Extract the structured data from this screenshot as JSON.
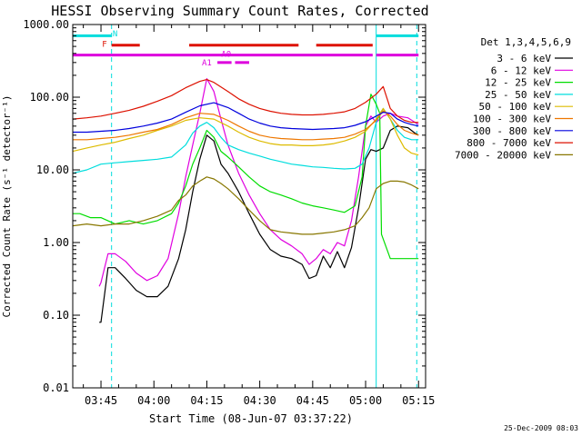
{
  "chart_data": {
    "type": "line",
    "title": "HESSI Observing Summary Count Rates, Corrected",
    "xlabel": "Start Time (08-Jun-07 03:37:22)",
    "ylabel": "Corrected Count Rate (s⁻¹ detector⁻¹)",
    "y_scale": "log",
    "xlim": [
      0,
      100
    ],
    "ylim": [
      0.01,
      1000
    ],
    "x_ticks": [
      {
        "x": 8,
        "label": "03:45"
      },
      {
        "x": 23,
        "label": "04:00"
      },
      {
        "x": 38,
        "label": "04:15"
      },
      {
        "x": 53,
        "label": "04:30"
      },
      {
        "x": 68,
        "label": "04:45"
      },
      {
        "x": 83,
        "label": "05:00"
      },
      {
        "x": 98,
        "label": "05:15"
      }
    ],
    "y_ticks": [
      {
        "y": 0.01,
        "label": "0.01"
      },
      {
        "y": 0.1,
        "label": "0.10"
      },
      {
        "y": 1,
        "label": "1.00"
      },
      {
        "y": 10,
        "label": "10.00"
      },
      {
        "y": 100,
        "label": "100.00"
      },
      {
        "y": 1000,
        "label": "1000.00"
      }
    ],
    "legend_title": "Det 1,3,4,5,6,9",
    "legend_position": "right",
    "series": [
      {
        "name": "3 - 6 keV",
        "color": "#000000",
        "x": [
          7.5,
          8,
          10,
          12,
          15,
          18,
          21,
          24,
          27,
          30,
          32,
          34,
          36,
          38,
          40,
          42,
          44,
          47,
          50,
          53,
          56,
          59,
          62,
          65,
          67,
          69,
          71,
          73,
          75,
          77,
          79,
          81,
          83,
          84.5,
          86,
          88,
          90,
          92,
          95,
          97,
          98
        ],
        "y": [
          0.08,
          0.08,
          0.45,
          0.45,
          0.32,
          0.22,
          0.18,
          0.18,
          0.25,
          0.6,
          1.5,
          5,
          14,
          30,
          25,
          12,
          9,
          5,
          2.5,
          1.3,
          0.8,
          0.65,
          0.6,
          0.5,
          0.32,
          0.35,
          0.65,
          0.45,
          0.75,
          0.45,
          0.85,
          3,
          14,
          19,
          18,
          20,
          35,
          40,
          38,
          32,
          30
        ]
      },
      {
        "name": "6 - 12 keV",
        "color": "#e000e0",
        "x": [
          7.5,
          8,
          10,
          12,
          15,
          18,
          21,
          24,
          27,
          30,
          32,
          34,
          36,
          38,
          40,
          42,
          44,
          47,
          50,
          53,
          56,
          59,
          62,
          65,
          67,
          69,
          71,
          73,
          75,
          77,
          79,
          81,
          83,
          84.5,
          86,
          88,
          90,
          92,
          95,
          97,
          98
        ],
        "y": [
          0.25,
          0.28,
          0.7,
          0.7,
          0.55,
          0.38,
          0.3,
          0.35,
          0.6,
          2.5,
          8,
          22,
          60,
          180,
          120,
          50,
          22,
          9,
          4.5,
          2.5,
          1.5,
          1.1,
          0.9,
          0.7,
          0.5,
          0.6,
          0.8,
          0.7,
          1,
          0.9,
          2,
          8,
          40,
          55,
          45,
          55,
          60,
          55,
          52,
          45,
          42
        ]
      },
      {
        "name": "12 - 25 keV",
        "color": "#00dd00",
        "x": [
          0,
          2,
          5,
          8,
          12,
          16,
          20,
          24,
          28,
          30,
          32,
          34,
          36,
          38,
          40,
          42,
          44,
          47,
          50,
          53,
          56,
          59,
          62,
          65,
          68,
          71,
          74,
          77,
          80,
          82,
          83,
          84.5,
          86,
          87,
          87.5,
          90,
          95,
          98
        ],
        "y": [
          2.5,
          2.5,
          2.2,
          2.2,
          1.8,
          2,
          1.8,
          2,
          2.5,
          3.5,
          6,
          12,
          20,
          35,
          28,
          18,
          15,
          11,
          8,
          6,
          5,
          4.5,
          4,
          3.5,
          3.2,
          3,
          2.8,
          2.6,
          3.2,
          8,
          40,
          110,
          80,
          60,
          1.3,
          0.6,
          0.6,
          0.6
        ]
      },
      {
        "name": "25 - 50 keV",
        "color": "#00dddd",
        "x": [
          0,
          4,
          8,
          12,
          16,
          20,
          24,
          28,
          32,
          34,
          36,
          38,
          40,
          42,
          44,
          47,
          50,
          53,
          56,
          59,
          62,
          65,
          68,
          71,
          74,
          77,
          80,
          82,
          84,
          86,
          88,
          90,
          92,
          94,
          96,
          98
        ],
        "y": [
          9,
          10,
          12,
          12.5,
          13,
          13.5,
          14,
          15,
          22,
          32,
          40,
          45,
          38,
          28,
          22,
          19,
          17,
          15.5,
          14,
          13,
          12,
          11.5,
          11,
          10.8,
          10.5,
          10.3,
          10.5,
          12,
          20,
          45,
          70,
          50,
          35,
          28,
          26,
          26
        ]
      },
      {
        "name": "50 - 100 keV",
        "color": "#ddbb00",
        "x": [
          0,
          4,
          8,
          12,
          16,
          20,
          24,
          28,
          32,
          36,
          40,
          44,
          47,
          50,
          53,
          56,
          59,
          62,
          65,
          68,
          71,
          74,
          77,
          80,
          83,
          86,
          88,
          90,
          92,
          94,
          96,
          98
        ],
        "y": [
          18,
          20,
          22,
          24,
          27,
          30,
          35,
          40,
          48,
          52,
          50,
          40,
          33,
          28,
          25,
          23,
          22,
          22,
          21.5,
          21.5,
          22,
          23,
          25,
          28,
          34,
          50,
          70,
          50,
          30,
          20,
          17,
          16
        ]
      },
      {
        "name": "100 - 300 keV",
        "color": "#ee7700",
        "x": [
          0,
          4,
          8,
          12,
          16,
          20,
          24,
          28,
          32,
          36,
          40,
          44,
          47,
          50,
          53,
          56,
          59,
          62,
          65,
          68,
          71,
          74,
          77,
          80,
          83,
          86,
          88,
          90,
          92,
          94,
          96,
          98
        ],
        "y": [
          26,
          26,
          27,
          28,
          30,
          33,
          36,
          42,
          52,
          60,
          58,
          48,
          40,
          34,
          30,
          28,
          27,
          26.5,
          26,
          26,
          26.5,
          27,
          28,
          31,
          36,
          48,
          65,
          55,
          42,
          35,
          32,
          30
        ]
      },
      {
        "name": "300 - 800 keV",
        "color": "#0000dd",
        "x": [
          0,
          4,
          8,
          12,
          16,
          20,
          24,
          28,
          32,
          36,
          40,
          44,
          47,
          50,
          53,
          56,
          59,
          62,
          65,
          68,
          71,
          74,
          77,
          80,
          83,
          86,
          88,
          90,
          92,
          94,
          96,
          98
        ],
        "y": [
          33,
          33,
          34,
          35,
          37,
          40,
          44,
          50,
          62,
          76,
          84,
          72,
          60,
          50,
          44,
          40,
          38,
          37,
          36.5,
          36,
          36.5,
          37,
          38,
          41,
          46,
          55,
          62,
          60,
          50,
          45,
          42,
          40
        ]
      },
      {
        "name": "800 - 7000 keV",
        "color": "#dd1100",
        "x": [
          0,
          4,
          8,
          12,
          16,
          20,
          24,
          28,
          32,
          36,
          38,
          40,
          44,
          47,
          50,
          53,
          56,
          59,
          62,
          65,
          68,
          71,
          74,
          77,
          80,
          83,
          86,
          88,
          90,
          92,
          94,
          96,
          98
        ],
        "y": [
          50,
          52,
          55,
          60,
          66,
          75,
          88,
          105,
          135,
          165,
          175,
          160,
          120,
          95,
          80,
          70,
          64,
          60,
          58,
          57,
          57,
          58,
          60,
          63,
          70,
          85,
          110,
          140,
          70,
          55,
          48,
          45,
          45
        ]
      },
      {
        "name": "7000 - 20000 keV",
        "color": "#887700",
        "x": [
          0,
          4,
          8,
          12,
          16,
          20,
          24,
          28,
          30,
          32,
          34,
          36,
          38,
          40,
          42,
          44,
          47,
          50,
          53,
          56,
          59,
          62,
          65,
          68,
          71,
          74,
          77,
          80,
          82,
          84,
          86,
          88,
          90,
          92,
          94,
          96,
          98
        ],
        "y": [
          1.7,
          1.8,
          1.7,
          1.8,
          1.8,
          2,
          2.3,
          2.8,
          3.8,
          4.5,
          6,
          7,
          8,
          7.5,
          6.5,
          5.5,
          4,
          2.8,
          2,
          1.5,
          1.4,
          1.35,
          1.3,
          1.3,
          1.35,
          1.4,
          1.5,
          1.7,
          2.2,
          3,
          5.5,
          6.5,
          7,
          7,
          6.8,
          6.2,
          5.5
        ]
      }
    ],
    "attenuator_bars": [
      {
        "label": "N",
        "color": "#00dddd",
        "segments": [
          [
            0,
            11
          ]
        ],
        "level": 700
      },
      {
        "label": "N",
        "color": "#00dddd",
        "segments": [
          [
            86,
            98
          ]
        ],
        "level": 700
      },
      {
        "label": "F",
        "color": "#dd1100",
        "segments": [
          [
            11,
            19
          ],
          [
            33,
            64
          ],
          [
            69,
            85
          ]
        ],
        "level": 520
      },
      {
        "label": "A0",
        "color": "#dd00dd",
        "segments": [
          [
            0,
            85
          ],
          [
            86,
            98
          ]
        ],
        "level": 380
      },
      {
        "label": "A1",
        "color": "#dd00dd",
        "segments": [
          [
            41,
            45
          ],
          [
            46,
            50
          ]
        ],
        "level": 300
      }
    ],
    "vertical_lines": [
      {
        "x": 0,
        "color": "#00dddd",
        "style": "solid"
      },
      {
        "x": 11,
        "color": "#00dddd",
        "style": "dashed"
      },
      {
        "x": 86,
        "color": "#00dddd",
        "style": "solid"
      },
      {
        "x": 97.5,
        "color": "#00dddd",
        "style": "dashed"
      }
    ],
    "annotations": [
      {
        "text": "N",
        "x": 12,
        "y": 750,
        "color": "#00dddd"
      },
      {
        "text": "F",
        "x": 9,
        "y": 540,
        "color": "#dd1100"
      },
      {
        "text": "A0",
        "x": 43.5,
        "y": 390,
        "color": "#dd00dd"
      },
      {
        "text": "A1",
        "x": 38,
        "y": 300,
        "color": "#dd00dd"
      }
    ]
  },
  "footer": {
    "date_stamp": "25-Dec-2009 08:03"
  }
}
